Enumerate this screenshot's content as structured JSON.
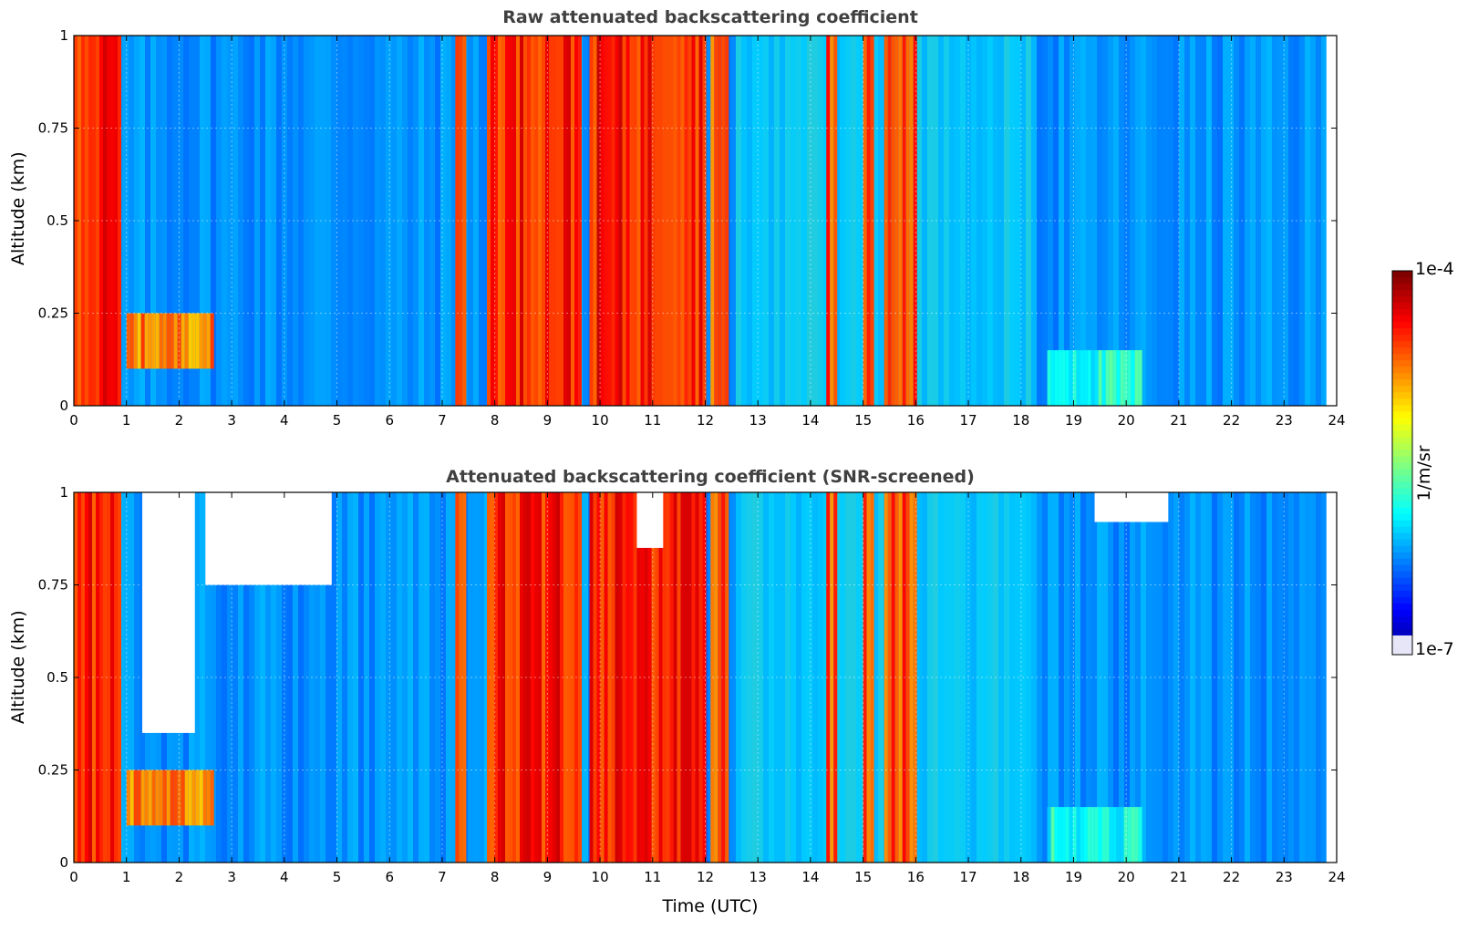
{
  "chart_data": [
    {
      "type": "heatmap",
      "title": "Raw attenuated backscattering coefficient",
      "xlabel": "",
      "ylabel": "Altitude (km)",
      "xlim": [
        0,
        24
      ],
      "ylim": [
        0,
        1
      ],
      "xticks": [
        "0",
        "1",
        "2",
        "3",
        "4",
        "5",
        "6",
        "7",
        "8",
        "9",
        "10",
        "11",
        "12",
        "13",
        "14",
        "15",
        "16",
        "17",
        "18",
        "19",
        "20",
        "21",
        "22",
        "23",
        "24"
      ],
      "yticks": [
        "0",
        "0.25",
        "0.5",
        "0.75",
        "1"
      ],
      "grid": true,
      "colorscale": "jet",
      "data_end_hour": 23.8,
      "features": [
        {
          "start": 0.0,
          "end": 0.85,
          "level": 0.85,
          "note": "strong return near surface to 1 km"
        },
        {
          "start": 1.0,
          "end": 2.6,
          "level": 0.75,
          "alt_range": [
            0.1,
            0.25
          ]
        },
        {
          "start": 7.25,
          "end": 7.45,
          "level": 0.8
        },
        {
          "start": 7.85,
          "end": 9.6,
          "level": 0.85
        },
        {
          "start": 9.8,
          "end": 12.0,
          "level": 0.85
        },
        {
          "start": 12.1,
          "end": 12.4,
          "level": 0.8
        },
        {
          "start": 14.3,
          "end": 14.5,
          "level": 0.8
        },
        {
          "start": 15.0,
          "end": 15.2,
          "level": 0.8
        },
        {
          "start": 15.4,
          "end": 16.0,
          "level": 0.8
        },
        {
          "start": 18.5,
          "end": 20.3,
          "level": 0.4,
          "alt_range": [
            0.0,
            0.15
          ]
        }
      ]
    },
    {
      "type": "heatmap",
      "title": "Attenuated backscattering coefficient (SNR-screened)",
      "xlabel": "Time (UTC)",
      "ylabel": "Altitude (km)",
      "xlim": [
        0,
        24
      ],
      "ylim": [
        0,
        1
      ],
      "xticks": [
        "0",
        "1",
        "2",
        "3",
        "4",
        "5",
        "6",
        "7",
        "8",
        "9",
        "10",
        "11",
        "12",
        "13",
        "14",
        "15",
        "16",
        "17",
        "18",
        "19",
        "20",
        "21",
        "22",
        "23",
        "24"
      ],
      "yticks": [
        "0",
        "0.25",
        "0.5",
        "0.75",
        "1"
      ],
      "grid": true,
      "colorscale": "jet",
      "data_end_hour": 23.8,
      "features": [
        {
          "start": 0.0,
          "end": 0.85,
          "level": 0.85
        },
        {
          "start": 1.0,
          "end": 2.6,
          "level": 0.75,
          "alt_range": [
            0.1,
            0.25
          ]
        },
        {
          "start": 7.25,
          "end": 7.45,
          "level": 0.8
        },
        {
          "start": 7.85,
          "end": 9.6,
          "level": 0.85
        },
        {
          "start": 9.8,
          "end": 12.0,
          "level": 0.85
        },
        {
          "start": 12.1,
          "end": 12.4,
          "level": 0.8
        },
        {
          "start": 14.3,
          "end": 14.5,
          "level": 0.8
        },
        {
          "start": 15.0,
          "end": 15.2,
          "level": 0.8
        },
        {
          "start": 15.4,
          "end": 16.0,
          "level": 0.8
        },
        {
          "start": 18.5,
          "end": 20.3,
          "level": 0.4,
          "alt_range": [
            0.0,
            0.15
          ]
        }
      ]
    }
  ],
  "colorbar": {
    "label": "1/m/sr",
    "max_label": "1e-4",
    "min_label": "1e-7"
  }
}
